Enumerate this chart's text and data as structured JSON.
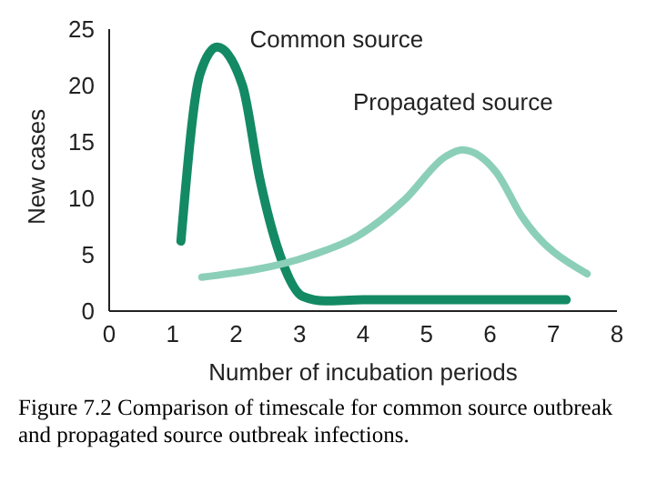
{
  "chart_data": {
    "type": "line",
    "xlabel": "Number of incubation periods",
    "ylabel": "New cases",
    "xlim": [
      0,
      8
    ],
    "xticks": [
      0,
      1,
      2,
      3,
      4,
      5,
      6,
      7,
      8
    ],
    "ylim": [
      0,
      25
    ],
    "yticks": [
      0,
      5,
      10,
      15,
      20,
      25
    ],
    "grid": false,
    "legend": false,
    "marker": "none",
    "line_style": "solid",
    "series": [
      {
        "name": "Common source",
        "color": "#138a63",
        "x": [
          1.13,
          1.43,
          1.7,
          2.1,
          2.37,
          2.7,
          3.05,
          3.4,
          4,
          5,
          6,
          7.2
        ],
        "values": [
          6.2,
          21,
          23.4,
          20,
          11.8,
          4.8,
          1.3,
          0.9,
          1,
          1,
          1,
          1
        ]
      },
      {
        "name": "Propagated source",
        "color": "#8ccfb8",
        "x": [
          1.46,
          3.16,
          3.9,
          4.66,
          5.3,
          5.56,
          6.1,
          6.5,
          7.53
        ],
        "values": [
          3,
          4.9,
          6.6,
          9.9,
          13.7,
          14.3,
          12.3,
          8.4,
          3.3
        ]
      }
    ],
    "annotations": [
      "Figure 7.2 Comparison of timescale for common source outbreak and propagated source outbreak infections."
    ]
  }
}
